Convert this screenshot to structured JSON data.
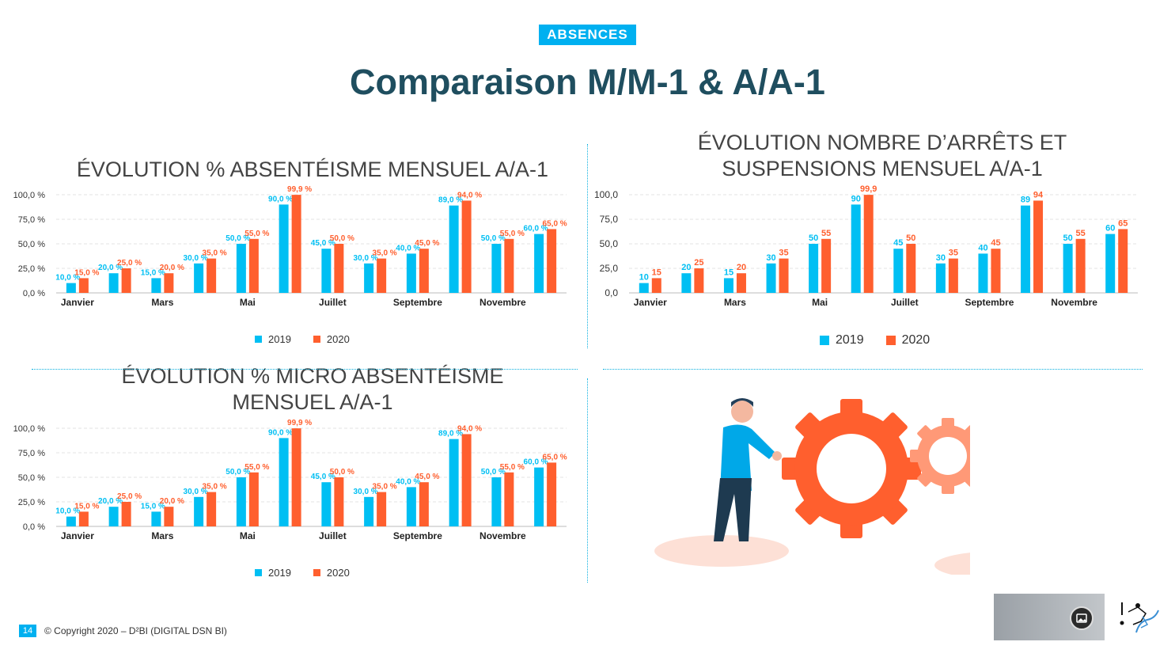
{
  "header": {
    "badge": "ABSENCES",
    "title": "Comparaison M/M-1 & A/A-1"
  },
  "chart_data": [
    {
      "type": "bar",
      "title_line1": "ÉVOLUTION % ABSENTÉISME MENSUEL A/A-1",
      "title_line2": "",
      "categories": [
        "Janvier",
        "",
        "Mars",
        "",
        "Mai",
        "",
        "Juillet",
        "",
        "Septembre",
        "",
        "Novembre",
        ""
      ],
      "series": [
        {
          "name": "2019",
          "values": [
            10,
            20,
            15,
            30,
            50,
            90,
            45,
            30,
            40,
            89,
            50,
            60
          ]
        },
        {
          "name": "2020",
          "values": [
            15,
            25,
            20,
            35,
            55,
            99.9,
            50,
            35,
            45,
            94,
            55,
            65
          ]
        }
      ],
      "ylim": [
        0,
        100
      ],
      "yticks": [
        "0,0 %",
        "25,0 %",
        "50,0 %",
        "75,0 %",
        "100,0 %"
      ],
      "label_format": "pct",
      "legend": [
        "2019",
        "2020"
      ],
      "colors": [
        "#00bff3",
        "#ff5f2e"
      ]
    },
    {
      "type": "bar",
      "title_line1": "ÉVOLUTION NOMBRE D’ARRÊTS ET",
      "title_line2": "SUSPENSIONS MENSUEL A/A-1",
      "categories": [
        "Janvier",
        "",
        "Mars",
        "",
        "Mai",
        "",
        "Juillet",
        "",
        "Septembre",
        "",
        "Novembre",
        ""
      ],
      "series": [
        {
          "name": "2019",
          "values": [
            10,
            20,
            15,
            30,
            50,
            90,
            45,
            30,
            40,
            89,
            50,
            60
          ]
        },
        {
          "name": "2020",
          "values": [
            15,
            25,
            20,
            35,
            55,
            99.9,
            50,
            35,
            45,
            94,
            55,
            65
          ]
        }
      ],
      "ylim": [
        0,
        100
      ],
      "yticks": [
        "0,0",
        "25,0",
        "50,0",
        "75,0",
        "100,0"
      ],
      "label_format": "int",
      "legend": [
        "2019",
        "2020"
      ],
      "colors": [
        "#00bff3",
        "#ff5f2e"
      ]
    },
    {
      "type": "bar",
      "title_line1": "ÉVOLUTION % MICRO ABSENTÉISME",
      "title_line2": "MENSUEL A/A-1",
      "categories": [
        "Janvier",
        "",
        "Mars",
        "",
        "Mai",
        "",
        "Juillet",
        "",
        "Septembre",
        "",
        "Novembre",
        ""
      ],
      "series": [
        {
          "name": "2019",
          "values": [
            10,
            20,
            15,
            30,
            50,
            90,
            45,
            30,
            40,
            89,
            50,
            60
          ]
        },
        {
          "name": "2020",
          "values": [
            15,
            25,
            20,
            35,
            55,
            99.9,
            50,
            35,
            45,
            94,
            55,
            65
          ]
        }
      ],
      "ylim": [
        0,
        100
      ],
      "yticks": [
        "0,0 %",
        "25,0 %",
        "50,0 %",
        "75,0 %",
        "100,0 %"
      ],
      "label_format": "pct",
      "legend": [
        "2019",
        "2020"
      ],
      "colors": [
        "#00bff3",
        "#ff5f2e"
      ]
    }
  ],
  "footer": {
    "page_number": "14",
    "copyright": "© Copyright 2020 – D²BI (DIGITAL DSN BI)"
  }
}
